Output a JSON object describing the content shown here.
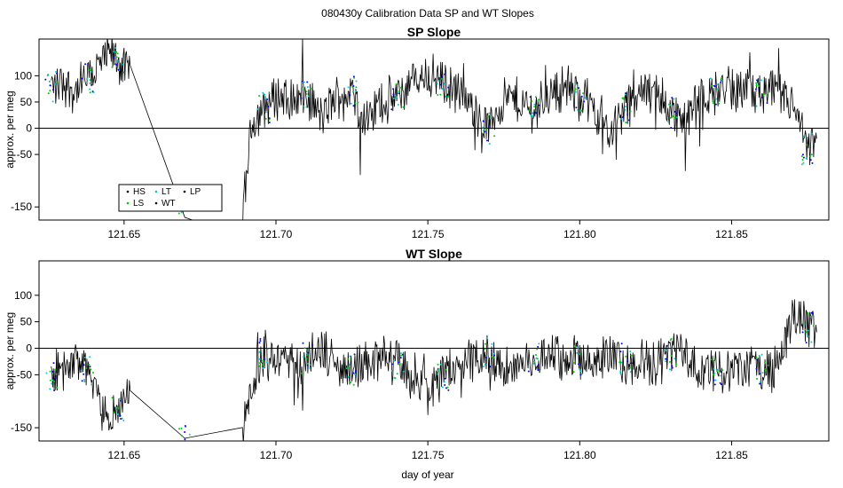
{
  "figure": {
    "main_title": "080430y   Calibration Data SP and WT Slopes",
    "xlabel": "day of year"
  },
  "chart_data": [
    {
      "type": "line",
      "title": "SP Slope",
      "xlabel": "",
      "ylabel": "approx. per meg",
      "xlim": [
        121.622,
        121.882
      ],
      "ylim": [
        -175,
        170
      ],
      "xticks": [
        121.65,
        121.7,
        121.75,
        121.8,
        121.85
      ],
      "xtick_labels": [
        "121.65",
        "121.70",
        "121.75",
        "121.80",
        "121.85"
      ],
      "yticks": [
        -150,
        -50,
        0,
        50,
        100
      ],
      "ytick_labels": [
        "-150",
        "-50",
        "0",
        "50",
        "100"
      ],
      "hline": 0,
      "legend": {
        "position": "bottom-left",
        "entries": [
          {
            "label": "HS",
            "color": "#000000"
          },
          {
            "label": "LS",
            "color": "#00cc00"
          },
          {
            "label": "LT",
            "color": "#00cccc"
          },
          {
            "label": "WT",
            "color": "#000000"
          },
          {
            "label": "LP",
            "color": "#000000"
          }
        ]
      },
      "series": [
        {
          "name": "slope",
          "color": "#000000",
          "x": [
            121.626,
            121.63,
            121.634,
            121.638,
            121.642,
            121.646,
            121.648,
            121.651,
            121.652,
            121.67,
            121.689,
            121.692,
            121.696,
            121.7,
            121.705,
            121.71,
            121.715,
            121.72,
            121.725,
            121.73,
            121.735,
            121.74,
            121.745,
            121.75,
            121.755,
            121.76,
            121.765,
            121.77,
            121.775,
            121.78,
            121.785,
            121.79,
            121.795,
            121.8,
            121.805,
            121.81,
            121.815,
            121.82,
            121.825,
            121.83,
            121.835,
            121.84,
            121.845,
            121.85,
            121.855,
            121.86,
            121.865,
            121.87,
            121.875,
            121.878
          ],
          "y": [
            80,
            90,
            70,
            95,
            120,
            140,
            130,
            110,
            120,
            -170,
            -170,
            10,
            40,
            60,
            55,
            60,
            20,
            60,
            70,
            10,
            50,
            60,
            90,
            100,
            90,
            70,
            30,
            0,
            60,
            50,
            30,
            65,
            80,
            60,
            40,
            -10,
            40,
            70,
            70,
            30,
            10,
            60,
            70,
            75,
            70,
            65,
            60,
            45,
            -40,
            -20
          ]
        }
      ]
    },
    {
      "type": "line",
      "title": "WT Slope",
      "xlabel": "day of year",
      "ylabel": "approx. per meg",
      "xlim": [
        121.622,
        121.882
      ],
      "ylim": [
        -175,
        165
      ],
      "xticks": [
        121.65,
        121.7,
        121.75,
        121.8,
        121.85
      ],
      "xtick_labels": [
        "121.65",
        "121.70",
        "121.75",
        "121.80",
        "121.85"
      ],
      "yticks": [
        -150,
        -50,
        0,
        50,
        100
      ],
      "ytick_labels": [
        "-150",
        "-50",
        "0",
        "50",
        "100"
      ],
      "hline": 0,
      "series": [
        {
          "name": "slope",
          "color": "#000000",
          "x": [
            121.626,
            121.63,
            121.634,
            121.638,
            121.642,
            121.646,
            121.648,
            121.651,
            121.652,
            121.67,
            121.689,
            121.692,
            121.696,
            121.7,
            121.705,
            121.71,
            121.715,
            121.72,
            121.725,
            121.73,
            121.735,
            121.74,
            121.745,
            121.75,
            121.755,
            121.76,
            121.765,
            121.77,
            121.775,
            121.78,
            121.785,
            121.79,
            121.795,
            121.8,
            121.805,
            121.81,
            121.815,
            121.82,
            121.825,
            121.83,
            121.835,
            121.84,
            121.845,
            121.85,
            121.855,
            121.86,
            121.865,
            121.87,
            121.875,
            121.878
          ],
          "y": [
            -50,
            -40,
            -30,
            -40,
            -110,
            -130,
            -120,
            -90,
            -80,
            -170,
            -170,
            -70,
            -10,
            -20,
            -30,
            -20,
            0,
            -30,
            -40,
            -20,
            -20,
            -30,
            -60,
            -80,
            -50,
            -40,
            -20,
            -10,
            -40,
            -30,
            -20,
            -10,
            -20,
            -20,
            -30,
            -10,
            -20,
            -20,
            -30,
            -10,
            -10,
            -40,
            -40,
            -40,
            -40,
            -40,
            -40,
            60,
            40,
            30
          ]
        }
      ]
    }
  ]
}
